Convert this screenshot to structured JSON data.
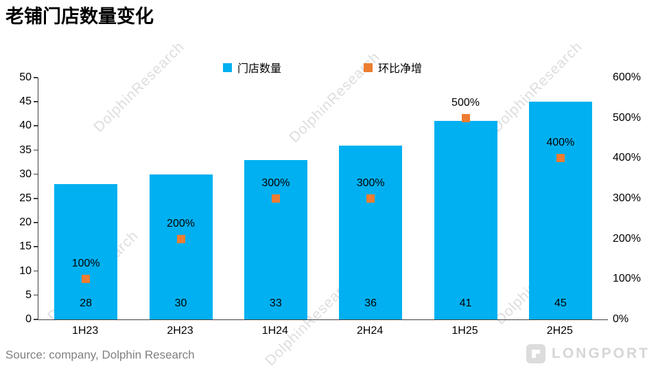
{
  "title": "老铺门店数量变化",
  "source": "Source: company, Dolphin Research",
  "watermark": "DolphinResearch",
  "brand": "LONGPORT",
  "legend": [
    {
      "label": "门店数量",
      "color": "#00B0F0"
    },
    {
      "label": "环比净增",
      "color": "#ED7D31"
    }
  ],
  "chart_data": {
    "type": "bar",
    "title": "老铺门店数量变化",
    "categories": [
      "1H23",
      "2H23",
      "1H24",
      "2H24",
      "1H25",
      "2H25"
    ],
    "series": [
      {
        "name": "门店数量",
        "type": "bar",
        "axis": "left",
        "color": "#00B0F0",
        "values": [
          28,
          30,
          33,
          36,
          41,
          45
        ],
        "labels": [
          "28",
          "30",
          "33",
          "36",
          "41",
          "45"
        ]
      },
      {
        "name": "环比净增",
        "type": "scatter",
        "axis": "right",
        "color": "#ED7D31",
        "values_percent": [
          100,
          200,
          300,
          300,
          500,
          400
        ],
        "labels": [
          "100%",
          "200%",
          "300%",
          "300%",
          "500%",
          "400%"
        ]
      }
    ],
    "left_axis": {
      "min": 0,
      "max": 50,
      "step": 5,
      "ticks": [
        "0",
        "5",
        "10",
        "15",
        "20",
        "25",
        "30",
        "35",
        "40",
        "45",
        "50"
      ]
    },
    "right_axis": {
      "min": 0,
      "max": 600,
      "step": 100,
      "ticks": [
        "0%",
        "100%",
        "200%",
        "300%",
        "400%",
        "500%",
        "600%"
      ]
    },
    "grid": false,
    "legend_position": "top-center"
  }
}
